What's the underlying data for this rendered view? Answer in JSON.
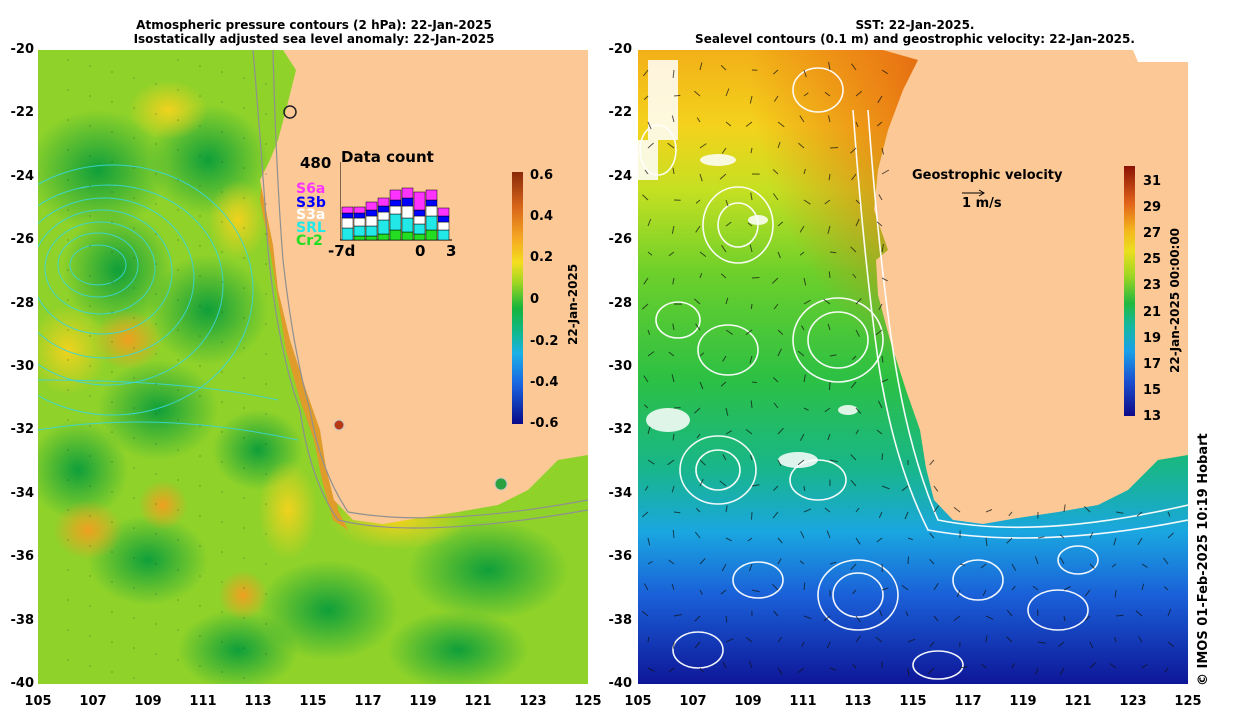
{
  "left_panel": {
    "title_line1": "Atmospheric pressure contours (2 hPa): 22-Jan-2025",
    "title_line2": "Isostatically adjusted sea level anomaly: 22-Jan-2025",
    "colorbar": {
      "ticks": [
        "0.6",
        "0.4",
        "0.2",
        "0",
        "-0.2",
        "-0.4",
        "-0.6"
      ],
      "label": "22-Jan-2025"
    },
    "data_count": {
      "max_value": "480",
      "title": "Data count",
      "legend": [
        {
          "name": "S6a",
          "color": "#ff33ff"
        },
        {
          "name": "S3b",
          "color": "#0000ff"
        },
        {
          "name": "S3a",
          "color": "#ffffff"
        },
        {
          "name": "SRL",
          "color": "#22e8e8"
        },
        {
          "name": "Cr2",
          "color": "#22dd22"
        }
      ],
      "x_ticks": [
        "-7d",
        "0",
        "3"
      ]
    }
  },
  "right_panel": {
    "title_line1": "SST: 22-Jan-2025.",
    "title_line2": "Sealevel contours (0.1 m) and geostrophic velocity: 22-Jan-2025.",
    "legend_title": "Geostrophic velocity",
    "legend_scale": "1 m/s",
    "colorbar": {
      "ticks": [
        "31",
        "29",
        "27",
        "25",
        "23",
        "21",
        "19",
        "17",
        "15",
        "13"
      ],
      "label": "22-Jan-2025 00:00:00"
    }
  },
  "axes": {
    "y_ticks": [
      "-20",
      "-22",
      "-24",
      "-26",
      "-28",
      "-30",
      "-32",
      "-34",
      "-36",
      "-38",
      "-40"
    ],
    "x_ticks": [
      "105",
      "107",
      "109",
      "111",
      "113",
      "115",
      "117",
      "119",
      "121",
      "123",
      "125"
    ]
  },
  "credit": "© IMOS 01-Feb-2025 10:19 Hobart",
  "colors": {
    "land": "#fbc896",
    "anomaly_low": "#0a0a9a",
    "anomaly_zero": "#22b33a",
    "anomaly_high": "#a02c0c",
    "sst_low": "#120a90",
    "sst_high": "#8a1204"
  }
}
